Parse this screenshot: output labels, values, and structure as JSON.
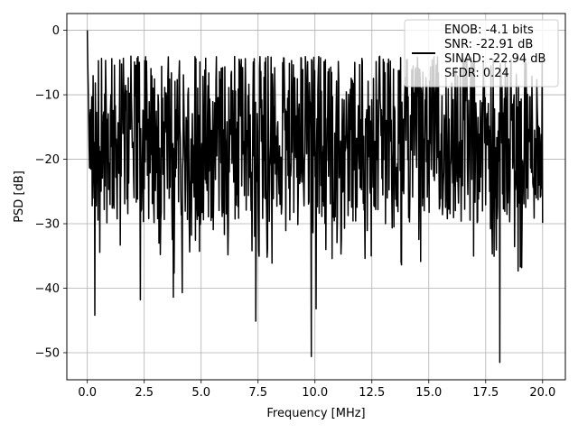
{
  "chart_data": {
    "type": "line",
    "title": "",
    "xlabel": "Frequency [MHz]",
    "ylabel": "PSD [dB]",
    "xlim": [
      -0.9,
      21.0
    ],
    "ylim": [
      -54.2,
      2.6
    ],
    "xticks": [
      0.0,
      2.5,
      5.0,
      7.5,
      10.0,
      12.5,
      15.0,
      17.5,
      20.0
    ],
    "xtick_labels": [
      "0.0",
      "2.5",
      "5.0",
      "7.5",
      "10.0",
      "12.5",
      "15.0",
      "17.5",
      "20.0"
    ],
    "yticks": [
      0,
      -10,
      -20,
      -30,
      -40,
      -50
    ],
    "ytick_labels": [
      "0",
      "−10",
      "−20",
      "−30",
      "−40",
      "−50"
    ],
    "grid": true,
    "legend": {
      "placement": "upper right",
      "entries": [
        {
          "label_lines": [
            "ENOB: -4.1 bits",
            "SNR: -22.91 dB",
            "SINAD: -22.94 dB",
            "SFDR: 0.24"
          ],
          "color": "#000000"
        }
      ]
    },
    "series": [
      {
        "color": "#000000",
        "x_start": 0.0,
        "x_end": 20.0,
        "points": 1024,
        "noise_floor_mean_db": -18,
        "noise_band_db": [
          -30,
          -5
        ],
        "peak": {
          "x": 0.0,
          "y": 0.0
        },
        "notable_dips": [
          {
            "x": 0.33,
            "y": -44.2
          },
          {
            "x": 2.33,
            "y": -41.8
          },
          {
            "x": 3.78,
            "y": -41.4
          },
          {
            "x": 4.17,
            "y": -40.7
          },
          {
            "x": 7.4,
            "y": -45.1
          },
          {
            "x": 9.84,
            "y": -50.6
          },
          {
            "x": 10.05,
            "y": -43.2
          },
          {
            "x": 18.12,
            "y": -51.5
          }
        ]
      }
    ]
  }
}
